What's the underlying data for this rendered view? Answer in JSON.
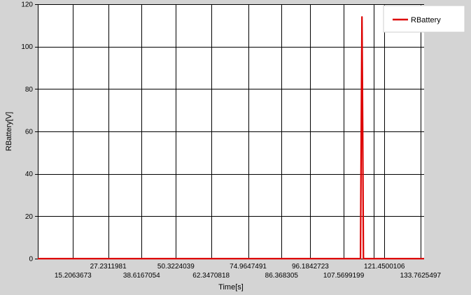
{
  "chart_data": {
    "type": "line",
    "title": "",
    "xlabel": "Time[s]",
    "ylabel": "RBattery[V]",
    "xlim": [
      3.2,
      135.0
    ],
    "ylim": [
      0,
      120
    ],
    "y_ticks": [
      0,
      20,
      40,
      60,
      80,
      100,
      120
    ],
    "x_tick_labels": [
      "15.2063673",
      "27.2311981",
      "38.6167054",
      "50.3224039",
      "62.3470818",
      "74.9647491",
      "86.368305",
      "96.1842723",
      "107.5699199",
      "121.4500106",
      "133.7625497"
    ],
    "x_tick_values": [
      15.2063673,
      27.2311981,
      38.6167054,
      50.3224039,
      62.3470818,
      74.9647491,
      86.368305,
      96.1842723,
      107.5699199,
      121.4500106,
      133.7625497
    ],
    "x_vertical_gridlines": [
      15.2,
      27.2,
      38.6,
      50.3,
      62.3,
      75.0,
      86.4,
      96.2,
      107.6,
      117.8,
      121.5,
      133.8
    ],
    "grid": true,
    "legend_position": "top-right",
    "series": [
      {
        "name": "RBattery",
        "color": "#dd0000",
        "x": [
          3.2,
          113.0,
          113.3,
          113.55,
          113.8,
          114.05,
          114.3,
          114.6,
          135.0
        ],
        "y": [
          0,
          0,
          0,
          60,
          114,
          60,
          0,
          0,
          0
        ]
      }
    ]
  }
}
